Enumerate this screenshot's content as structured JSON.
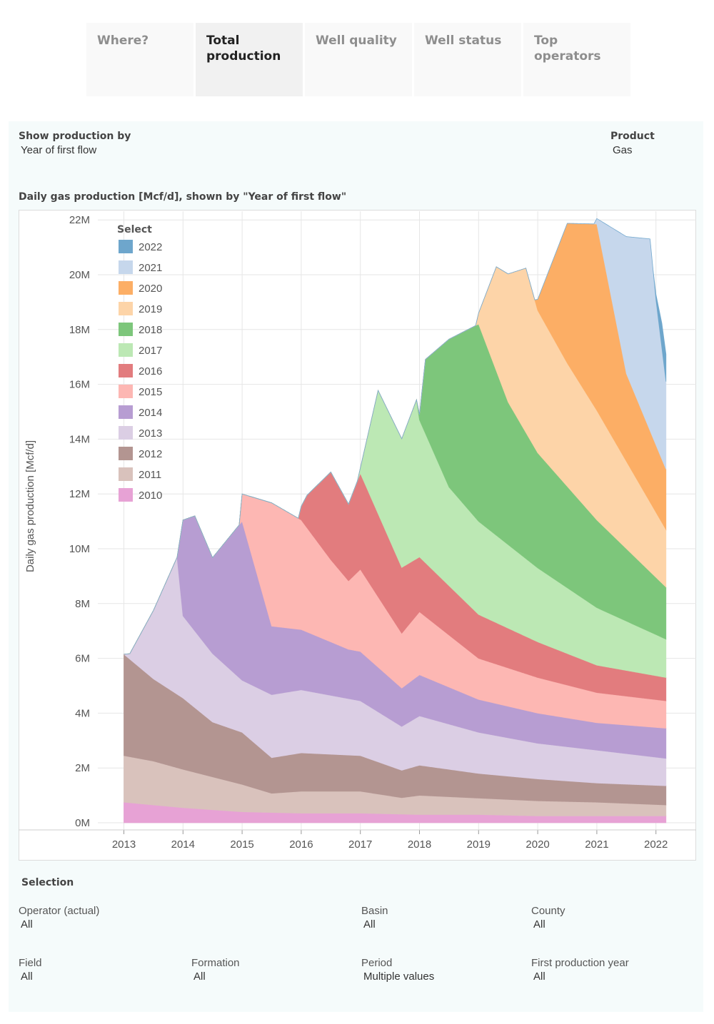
{
  "tabs": [
    {
      "label": "Where?",
      "active": false
    },
    {
      "label": "Total production",
      "active": true
    },
    {
      "label": "Well quality",
      "active": false
    },
    {
      "label": "Well status",
      "active": false
    },
    {
      "label": "Top operators",
      "active": false
    }
  ],
  "controls": {
    "show_by": {
      "label": "Show production by",
      "value": "Year of first flow"
    },
    "product": {
      "label": "Product",
      "value": "Gas"
    }
  },
  "selection": {
    "title": "Selection",
    "filters": [
      {
        "label": "Operator (actual)",
        "value": "All"
      },
      {
        "label": "Basin",
        "value": "All"
      },
      {
        "label": "County",
        "value": "All"
      },
      {
        "label": "Field",
        "value": "All"
      },
      {
        "label": "Formation",
        "value": "All"
      },
      {
        "label": "Period",
        "value": "Multiple values"
      },
      {
        "label": "First production year",
        "value": "All"
      }
    ]
  },
  "chart_data": {
    "type": "area",
    "stacked": true,
    "title": "Daily gas production [Mcf/d], shown by \"Year of first flow\"",
    "xlabel": "",
    "ylabel": "Daily gas production [Mcf/d]",
    "xlim": [
      2012.6,
      2022.6
    ],
    "ylim": [
      0,
      22
    ],
    "yunit": "M",
    "xticks": [
      "2013",
      "2014",
      "2015",
      "2016",
      "2017",
      "2018",
      "2019",
      "2020",
      "2021",
      "2022"
    ],
    "yticks": [
      "0M",
      "2M",
      "4M",
      "6M",
      "8M",
      "10M",
      "12M",
      "14M",
      "16M",
      "18M",
      "20M",
      "22M"
    ],
    "grid": true,
    "legend": {
      "title": "Select",
      "position": "top-left"
    },
    "series": [
      {
        "name": "2010",
        "color": "#e7a2d5",
        "data": [
          [
            2013,
            0.75
          ],
          [
            2013.5,
            0.65
          ],
          [
            2014,
            0.55
          ],
          [
            2015,
            0.4
          ],
          [
            2016,
            0.35
          ],
          [
            2017,
            0.35
          ],
          [
            2018,
            0.3
          ],
          [
            2019,
            0.3
          ],
          [
            2020,
            0.25
          ],
          [
            2021,
            0.25
          ],
          [
            2022.17,
            0.25
          ]
        ]
      },
      {
        "name": "2011",
        "color": "#d9c2bc",
        "data": [
          [
            2013,
            1.7
          ],
          [
            2013.5,
            1.6
          ],
          [
            2014,
            1.4
          ],
          [
            2014.5,
            1.2
          ],
          [
            2015,
            1.0
          ],
          [
            2015.5,
            0.7
          ],
          [
            2016,
            0.8
          ],
          [
            2017,
            0.8
          ],
          [
            2017.7,
            0.6
          ],
          [
            2018,
            0.7
          ],
          [
            2019,
            0.6
          ],
          [
            2020,
            0.55
          ],
          [
            2021,
            0.5
          ],
          [
            2022.17,
            0.4
          ]
        ]
      },
      {
        "name": "2012",
        "color": "#b39591",
        "data": [
          [
            2013,
            3.7
          ],
          [
            2013.5,
            3.0
          ],
          [
            2014,
            2.6
          ],
          [
            2014.5,
            2.0
          ],
          [
            2015,
            1.9
          ],
          [
            2015.5,
            1.3
          ],
          [
            2016,
            1.4
          ],
          [
            2017,
            1.3
          ],
          [
            2017.7,
            1.0
          ],
          [
            2018,
            1.1
          ],
          [
            2019,
            0.9
          ],
          [
            2020,
            0.8
          ],
          [
            2021,
            0.7
          ],
          [
            2022.17,
            0.7
          ]
        ]
      },
      {
        "name": "2013",
        "color": "#dbcee4",
        "data": [
          [
            2013,
            0
          ],
          [
            2013.1,
            0.2
          ],
          [
            2013.5,
            2.5
          ],
          [
            2013.9,
            5.0
          ],
          [
            2014,
            3.0
          ],
          [
            2014.5,
            2.5
          ],
          [
            2015,
            1.9
          ],
          [
            2015.5,
            2.3
          ],
          [
            2016,
            2.3
          ],
          [
            2017,
            2.0
          ],
          [
            2017.7,
            1.6
          ],
          [
            2018,
            1.8
          ],
          [
            2019,
            1.5
          ],
          [
            2020,
            1.3
          ],
          [
            2021,
            1.2
          ],
          [
            2022.17,
            1.0
          ]
        ]
      },
      {
        "name": "2014",
        "color": "#b79dd2",
        "data": [
          [
            2013.9,
            0
          ],
          [
            2014,
            3.5
          ],
          [
            2014.2,
            4.2
          ],
          [
            2014.5,
            3.5
          ],
          [
            2015,
            5.8
          ],
          [
            2015.5,
            2.5
          ],
          [
            2016,
            2.2
          ],
          [
            2016.8,
            1.8
          ],
          [
            2017,
            1.8
          ],
          [
            2017.7,
            1.4
          ],
          [
            2018,
            1.5
          ],
          [
            2019,
            1.2
          ],
          [
            2020,
            1.1
          ],
          [
            2021,
            1.0
          ],
          [
            2022.17,
            1.1
          ]
        ]
      },
      {
        "name": "2015",
        "color": "#fdb7b3",
        "data": [
          [
            2014.95,
            0
          ],
          [
            2015,
            1.0
          ],
          [
            2015.5,
            4.5
          ],
          [
            2016,
            4.0
          ],
          [
            2016.5,
            3.0
          ],
          [
            2016.8,
            2.5
          ],
          [
            2017,
            3.0
          ],
          [
            2017.7,
            2.0
          ],
          [
            2018,
            2.3
          ],
          [
            2019,
            1.5
          ],
          [
            2020,
            1.3
          ],
          [
            2021,
            1.1
          ],
          [
            2022.17,
            1.0
          ]
        ]
      },
      {
        "name": "2016",
        "color": "#e27c7e",
        "data": [
          [
            2015.95,
            0
          ],
          [
            2016,
            0.5
          ],
          [
            2016.1,
            1.2
          ],
          [
            2016.5,
            3.2
          ],
          [
            2016.8,
            2.8
          ],
          [
            2017,
            3.5
          ],
          [
            2017.7,
            2.4
          ],
          [
            2018,
            2.0
          ],
          [
            2019,
            1.6
          ],
          [
            2020,
            1.3
          ],
          [
            2021,
            1.0
          ],
          [
            2022.17,
            0.85
          ]
        ]
      },
      {
        "name": "2017",
        "color": "#bce8b4",
        "data": [
          [
            2016.95,
            0
          ],
          [
            2017,
            0.2
          ],
          [
            2017.3,
            4.5
          ],
          [
            2017.7,
            4.7
          ],
          [
            2017.95,
            5.8
          ],
          [
            2018,
            5.0
          ],
          [
            2018.5,
            3.6
          ],
          [
            2019,
            3.4
          ],
          [
            2020,
            2.7
          ],
          [
            2021,
            2.1
          ],
          [
            2022.17,
            1.4
          ]
        ]
      },
      {
        "name": "2018",
        "color": "#7dc67b",
        "data": [
          [
            2017.95,
            0
          ],
          [
            2018,
            0.2
          ],
          [
            2018.1,
            2.7
          ],
          [
            2018.5,
            5.4
          ],
          [
            2019,
            7.2
          ],
          [
            2019.5,
            5.2
          ],
          [
            2020,
            4.2
          ],
          [
            2021,
            3.2
          ],
          [
            2022.17,
            1.9
          ]
        ]
      },
      {
        "name": "2019",
        "color": "#fdd4a8",
        "data": [
          [
            2018.95,
            0
          ],
          [
            2019,
            0.4
          ],
          [
            2019.3,
            3.8
          ],
          [
            2019.8,
            6.0
          ],
          [
            2020,
            5.2
          ],
          [
            2020.5,
            4.5
          ],
          [
            2021,
            4.0
          ],
          [
            2022.17,
            2.1
          ]
        ]
      },
      {
        "name": "2020",
        "color": "#fcae65",
        "data": [
          [
            2019.95,
            0
          ],
          [
            2020,
            0.4
          ],
          [
            2020.5,
            5.1
          ],
          [
            2021,
            6.8
          ],
          [
            2021.5,
            3.2
          ],
          [
            2022.17,
            2.2
          ]
        ]
      },
      {
        "name": "2021",
        "color": "#c6d7ec",
        "data": [
          [
            2020.95,
            0
          ],
          [
            2021,
            0.2
          ],
          [
            2021.5,
            5.0
          ],
          [
            2021.9,
            7.0
          ],
          [
            2022,
            5.3
          ],
          [
            2022.17,
            3.2
          ]
        ]
      },
      {
        "name": "2022",
        "color": "#6ea6cc",
        "data": [
          [
            2021.95,
            0
          ],
          [
            2022,
            0.2
          ],
          [
            2022.1,
            0.9
          ],
          [
            2022.17,
            1.0
          ]
        ]
      }
    ]
  }
}
